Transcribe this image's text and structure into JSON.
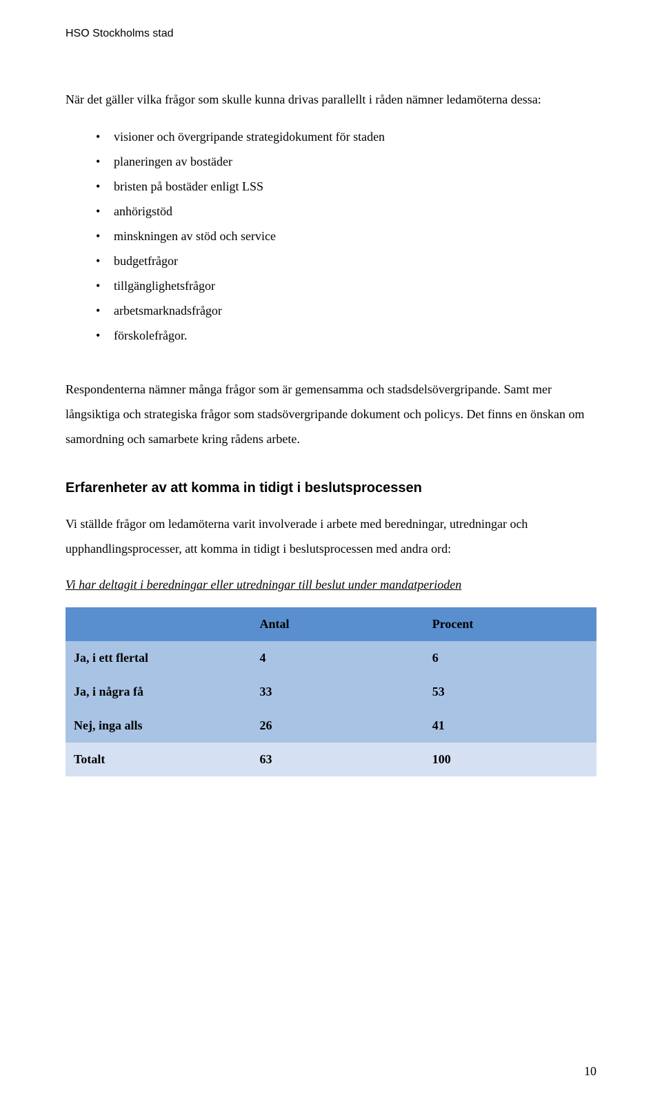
{
  "header": "HSO Stockholms stad",
  "intro": "När det gäller vilka frågor som skulle kunna drivas parallellt i råden nämner ledamöterna dessa:",
  "bullets": [
    "visioner och övergripande strategidokument för staden",
    "planeringen av bostäder",
    "bristen på bostäder enligt LSS",
    "anhörigstöd",
    "minskningen av stöd och service",
    "budgetfrågor",
    "tillgänglighetsfrågor",
    "arbetsmarknadsfrågor",
    "förskolefrågor."
  ],
  "para": "Respondenterna nämner många frågor som är gemensamma och stadsdelsövergripande. Samt mer långsiktiga och strategiska frågor som stadsövergripande dokument och policys. Det finns en önskan om samordning och samarbete kring rådens arbete.",
  "section_heading": "Erfarenheter av att komma in tidigt i beslutsprocessen",
  "para2": "Vi ställde frågor om ledamöterna varit involverade i arbete med beredningar, utredningar och upphandlingsprocesser, att komma in tidigt i beslutsprocessen med andra ord:",
  "question": "Vi har deltagit i beredningar eller utredningar till beslut under mandatperioden",
  "table": {
    "columns": [
      "",
      "Antal",
      "Procent"
    ],
    "rows": [
      {
        "label": "Ja, i ett flertal",
        "antal": "4",
        "procent": "6"
      },
      {
        "label": "Ja, i några få",
        "antal": "33",
        "procent": "53"
      },
      {
        "label": "Nej, inga alls",
        "antal": "26",
        "procent": "41"
      },
      {
        "label": "Totalt",
        "antal": "63",
        "procent": "100"
      }
    ],
    "colors": {
      "header_bg": "#5a8fcf",
      "row_dark_bg": "#a8c3e4",
      "row_light_bg": "#d5e1f2",
      "text": "#000000"
    }
  },
  "page_number": "10"
}
